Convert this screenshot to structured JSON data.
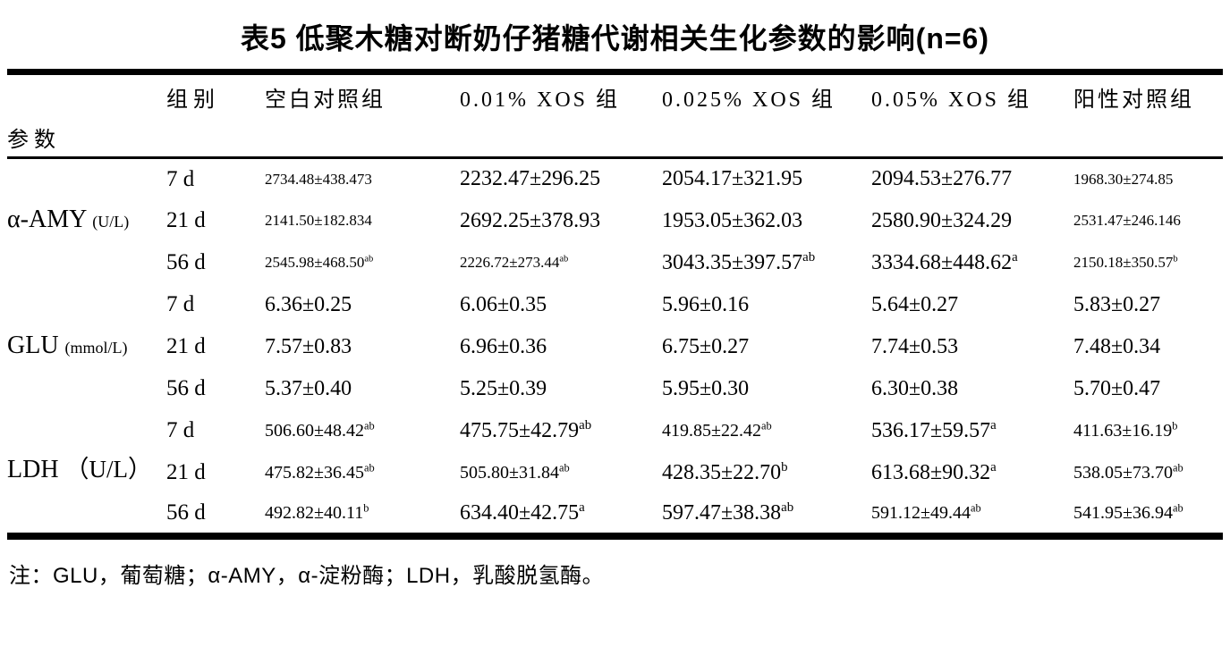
{
  "title": "表5 低聚木糖对断奶仔猪糖代谢相关生化参数的影响(n=6)",
  "table": {
    "header": {
      "group_label": "组别",
      "param_label": "参数",
      "columns": [
        "空白对照组",
        "0.01% XOS 组",
        "0.025% XOS 组",
        "0.05% XOS 组",
        "阳性对照组"
      ]
    },
    "groups": [
      {
        "param": {
          "name": "α-AMY",
          "unit": "(U/L)",
          "unit_small": true
        },
        "rows": [
          {
            "time": "7 d",
            "cells": [
              {
                "v": "2734.48±438.473",
                "sup": "",
                "size": "sm"
              },
              {
                "v": "2232.47±296.25",
                "sup": "",
                "size": "lg"
              },
              {
                "v": "2054.17±321.95",
                "sup": "",
                "size": "lg"
              },
              {
                "v": "2094.53±276.77",
                "sup": "",
                "size": "lg"
              },
              {
                "v": "1968.30±274.85",
                "sup": "",
                "size": "sm"
              }
            ]
          },
          {
            "time": "21 d",
            "cells": [
              {
                "v": "2141.50±182.834",
                "sup": "",
                "size": "sm"
              },
              {
                "v": "2692.25±378.93",
                "sup": "",
                "size": "lg"
              },
              {
                "v": "1953.05±362.03",
                "sup": "",
                "size": "lg"
              },
              {
                "v": "2580.90±324.29",
                "sup": "",
                "size": "lg"
              },
              {
                "v": "2531.47±246.146",
                "sup": "",
                "size": "sm"
              }
            ]
          },
          {
            "time": "56 d",
            "cells": [
              {
                "v": "2545.98±468.50",
                "sup": "ab",
                "size": "sm"
              },
              {
                "v": "2226.72±273.44",
                "sup": "ab",
                "size": "sm"
              },
              {
                "v": "3043.35±397.57",
                "sup": "ab",
                "size": "lg"
              },
              {
                "v": "3334.68±448.62",
                "sup": "a",
                "size": "lg"
              },
              {
                "v": "2150.18±350.57",
                "sup": "b",
                "size": "sm"
              }
            ]
          }
        ]
      },
      {
        "param": {
          "name": "GLU",
          "unit": "(mmol/L)",
          "unit_small": true
        },
        "rows": [
          {
            "time": "7 d",
            "cells": [
              {
                "v": "6.36±0.25",
                "sup": "",
                "size": "lg"
              },
              {
                "v": "6.06±0.35",
                "sup": "",
                "size": "lg"
              },
              {
                "v": "5.96±0.16",
                "sup": "",
                "size": "lg"
              },
              {
                "v": "5.64±0.27",
                "sup": "",
                "size": "lg"
              },
              {
                "v": "5.83±0.27",
                "sup": "",
                "size": "lg"
              }
            ]
          },
          {
            "time": "21 d",
            "cells": [
              {
                "v": "7.57±0.83",
                "sup": "",
                "size": "lg"
              },
              {
                "v": "6.96±0.36",
                "sup": "",
                "size": "lg"
              },
              {
                "v": "6.75±0.27",
                "sup": "",
                "size": "lg"
              },
              {
                "v": "7.74±0.53",
                "sup": "",
                "size": "lg"
              },
              {
                "v": "7.48±0.34",
                "sup": "",
                "size": "lg"
              }
            ]
          },
          {
            "time": "56 d",
            "cells": [
              {
                "v": "5.37±0.40",
                "sup": "",
                "size": "lg"
              },
              {
                "v": "5.25±0.39",
                "sup": "",
                "size": "lg"
              },
              {
                "v": "5.95±0.30",
                "sup": "",
                "size": "lg"
              },
              {
                "v": "6.30±0.38",
                "sup": "",
                "size": "lg"
              },
              {
                "v": "5.70±0.47",
                "sup": "",
                "size": "lg"
              }
            ]
          }
        ]
      },
      {
        "param": {
          "name": "LDH",
          "unit": "（U/L）",
          "unit_small": false
        },
        "rows": [
          {
            "time": "7 d",
            "cells": [
              {
                "v": "506.60±48.42",
                "sup": "ab",
                "size": "md"
              },
              {
                "v": "475.75±42.79",
                "sup": "ab",
                "size": "lg"
              },
              {
                "v": "419.85±22.42",
                "sup": "ab",
                "size": "md"
              },
              {
                "v": "536.17±59.57",
                "sup": "a",
                "size": "lg"
              },
              {
                "v": "411.63±16.19",
                "sup": "b",
                "size": "md"
              }
            ]
          },
          {
            "time": "21 d",
            "cells": [
              {
                "v": "475.82±36.45",
                "sup": "ab",
                "size": "md"
              },
              {
                "v": "505.80±31.84",
                "sup": "ab",
                "size": "md"
              },
              {
                "v": "428.35±22.70",
                "sup": "b",
                "size": "lg"
              },
              {
                "v": "613.68±90.32",
                "sup": "a",
                "size": "lg"
              },
              {
                "v": "538.05±73.70",
                "sup": "ab",
                "size": "md"
              }
            ]
          },
          {
            "time": "56 d",
            "cells": [
              {
                "v": "492.82±40.11",
                "sup": "b",
                "size": "md"
              },
              {
                "v": "634.40±42.75",
                "sup": "a",
                "size": "lg"
              },
              {
                "v": "597.47±38.38",
                "sup": "ab",
                "size": "lg"
              },
              {
                "v": "591.12±49.44",
                "sup": "ab",
                "size": "md"
              },
              {
                "v": "541.95±36.94",
                "sup": "ab",
                "size": "md"
              }
            ]
          }
        ]
      }
    ]
  },
  "footnote": "注：GLU，葡萄糖；α-AMY，α-淀粉酶；LDH，乳酸脱氢酶。"
}
